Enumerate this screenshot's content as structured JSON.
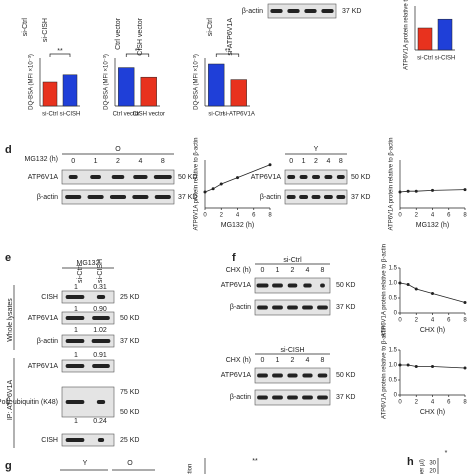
{
  "top": {
    "lane_labels": [
      "si-Ctrl",
      "si-CISH",
      "Ctrl vector",
      "CISH vector",
      "si-Ctrl",
      "si-ATP6V1A"
    ],
    "blot": {
      "label": "β-actin",
      "size": "37 KD"
    },
    "charts": [
      {
        "type": "bar",
        "ylabel": "DQ-BSA (MFI ×10⁻³)",
        "categories": [
          "si-Ctrl",
          "si-CISH"
        ],
        "colors": [
          "#e8321e",
          "#1f3fd8"
        ],
        "values": [
          1.0,
          1.3
        ],
        "ylim": [
          0,
          2
        ],
        "significance": "**"
      },
      {
        "type": "bar",
        "ylabel": "DQ-BSA (MFI ×10⁻³)",
        "categories": [
          "Ctrl vector",
          "CISH vector"
        ],
        "colors": [
          "#1f3fd8",
          "#e8321e"
        ],
        "values": [
          1.6,
          1.2
        ],
        "ylim": [
          0,
          2
        ],
        "significance": "**"
      },
      {
        "type": "bar",
        "ylabel": "DQ-BSA (MFI ×10⁻³)",
        "categories": [
          "si-Ctrl",
          "si-ATP6V1A"
        ],
        "colors": [
          "#1f3fd8",
          "#e8321e"
        ],
        "values": [
          1.75,
          1.1
        ],
        "ylim": [
          0,
          2
        ],
        "significance": "**"
      },
      {
        "type": "bar",
        "ylabel": "ATP6V1A protein relative to β-a",
        "categories": [
          "si-Ctrl",
          "si-CISH"
        ],
        "colors": [
          "#e8321e",
          "#1f3fd8"
        ],
        "values": [
          1.0,
          1.4
        ],
        "ylim": [
          0,
          2
        ]
      }
    ]
  },
  "panel_d": {
    "label": "d",
    "blots": [
      {
        "group": "O",
        "treatment": "MG132 (h)",
        "lanes": [
          "0",
          "1",
          "2",
          "4",
          "8"
        ],
        "rows": [
          {
            "name": "ATP6V1A",
            "size": "50 KD"
          },
          {
            "name": "β-actin",
            "size": "37 KD"
          }
        ]
      },
      {
        "group": "Y",
        "lanes": [
          "0",
          "1",
          "2",
          "4",
          "8"
        ],
        "rows": [
          {
            "name": "ATP6V1A",
            "size": "50 KD"
          },
          {
            "name": "β-actin",
            "size": "37 KD"
          }
        ]
      }
    ],
    "charts": [
      {
        "type": "line",
        "ylabel": "ATP6V1A protein relative to β-actin",
        "xlabel": "MG132 (h)",
        "x": [
          0,
          1,
          2,
          4,
          8
        ],
        "values": [
          1.0,
          1.2,
          1.5,
          1.9,
          2.7
        ],
        "xlim": [
          0,
          8
        ],
        "xticks": [
          0,
          2,
          4,
          6,
          8
        ],
        "ylim": [
          0,
          3
        ]
      },
      {
        "type": "line",
        "ylabel": "ATP6V1A protein relative to β-actin",
        "xlabel": "MG132 (h)",
        "x": [
          0,
          1,
          2,
          4,
          8
        ],
        "values": [
          1.0,
          1.05,
          1.05,
          1.1,
          1.15
        ],
        "xlim": [
          0,
          8
        ],
        "xticks": [
          0,
          2,
          4,
          6,
          8
        ],
        "ylim": [
          0,
          3
        ]
      }
    ]
  },
  "panel_e": {
    "label": "e",
    "treatment": "MG132",
    "lanes": [
      "si-Ctrl",
      "si-CISH"
    ],
    "groups": [
      "Whole lysates",
      "IP: ATP6V1A"
    ],
    "rows": [
      {
        "quant": [
          "1",
          "0.31"
        ],
        "name": "CISH",
        "size": "25 KD"
      },
      {
        "quant": [
          "1",
          "0.90"
        ],
        "name": "ATP6V1A",
        "size": "50 KD"
      },
      {
        "quant": [
          "1",
          "1.02"
        ],
        "name": "β-actin",
        "size": "37 KD"
      },
      {
        "quant": [
          "1",
          "0.91"
        ],
        "name": "ATP6V1A",
        "size": ""
      },
      {
        "name": "Poly-ubiquitin (K48)",
        "sizes": [
          "75 KD",
          "50 KD"
        ]
      },
      {
        "quant": [
          "1",
          "0.24"
        ],
        "name": "CISH",
        "size": "25 KD"
      }
    ]
  },
  "panel_f": {
    "label": "f",
    "blots": [
      {
        "group": "si-Ctrl",
        "treatment": "CHX (h)",
        "lanes": [
          "0",
          "1",
          "2",
          "4",
          "8"
        ],
        "rows": [
          {
            "name": "ATP6V1A",
            "size": "50 KD"
          },
          {
            "name": "β-actin",
            "size": "37 KD"
          }
        ]
      },
      {
        "group": "si-CISH",
        "treatment": "CHX (h)",
        "lanes": [
          "0",
          "1",
          "2",
          "4",
          "8"
        ],
        "rows": [
          {
            "name": "ATP6V1A",
            "size": "50 KD"
          },
          {
            "name": "β-actin",
            "size": "37 KD"
          }
        ]
      }
    ],
    "charts": [
      {
        "type": "line",
        "ylabel": "ATP6V1A protein relative to β-actin",
        "xlabel": "CHX (h)",
        "x": [
          0,
          1,
          2,
          4,
          8
        ],
        "values": [
          1.0,
          0.95,
          0.8,
          0.65,
          0.35
        ],
        "xlim": [
          0,
          8
        ],
        "xticks": [
          0,
          2,
          4,
          6,
          8
        ],
        "ylim": [
          0,
          1.5
        ],
        "yticks": [
          0,
          0.5,
          {
            "value": 1,
            "label": "1.0"
          },
          1.5
        ]
      },
      {
        "type": "line",
        "ylabel": "ATP6V1A protein relative to β-actin",
        "xlabel": "CHX (h)",
        "x": [
          0,
          1,
          2,
          4,
          8
        ],
        "values": [
          1.0,
          1.0,
          0.95,
          0.95,
          0.9
        ],
        "xlim": [
          0,
          8
        ],
        "xticks": [
          0,
          2,
          4,
          6,
          8
        ],
        "ylim": [
          0,
          1.5
        ],
        "yticks": [
          0,
          0.5,
          {
            "value": 1,
            "label": "1.0"
          },
          1.5
        ]
      }
    ]
  },
  "panel_g": {
    "label": "g",
    "groups": [
      "Y",
      "O"
    ],
    "significance": "**",
    "ylabel": "ction"
  },
  "panel_h": {
    "label": "h",
    "significance": "*",
    "ylabel": "s per µl)",
    "ticks": [
      "30",
      "20"
    ]
  }
}
